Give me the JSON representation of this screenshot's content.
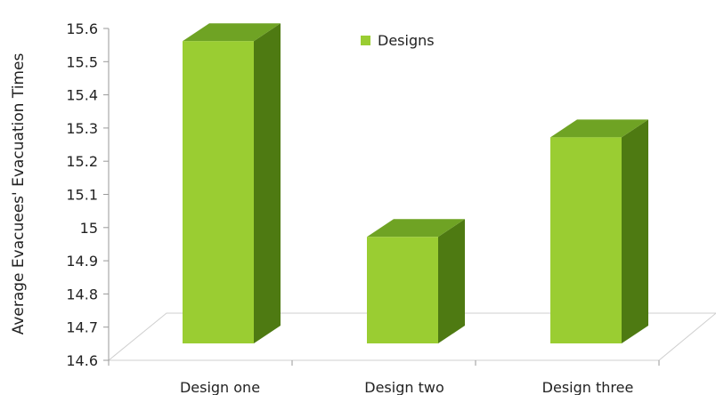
{
  "chart_data": {
    "type": "bar",
    "categories": [
      "Design one",
      "Design two",
      "Design three"
    ],
    "series": [
      {
        "name": "Designs",
        "values": [
          15.57,
          14.98,
          15.28
        ]
      }
    ],
    "title": "",
    "xlabel": "",
    "ylabel": "Average Evacuees' Evacuation Times",
    "ylim": [
      14.6,
      15.6
    ],
    "yticks": [
      "14.6",
      "14.7",
      "14.8",
      "14.9",
      "15",
      "15.1",
      "15.2",
      "15.3",
      "15.4",
      "15.5",
      "15.6"
    ],
    "grid": false,
    "legend_position": "top-center",
    "colors": {
      "front": "#9ACD32",
      "side": "#4E7A12",
      "top": "#6FA324"
    }
  }
}
